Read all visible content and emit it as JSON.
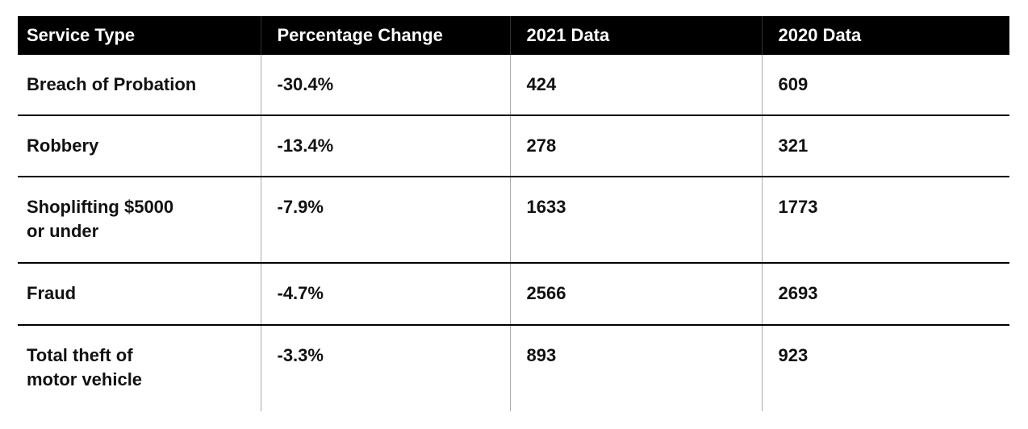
{
  "header": {
    "columns": [
      "Service Type",
      "Percentage Change",
      "2021 Data",
      "2020 Data"
    ]
  },
  "table": {
    "rows": [
      [
        "Breach of Probation",
        "-30.4%",
        "424",
        "609"
      ],
      [
        "Robbery",
        "-13.4%",
        "278",
        "321"
      ],
      [
        "Shoplifting $5000\nor under",
        "-7.9%",
        "1633",
        "1773"
      ],
      [
        "Fraud",
        "-4.7%",
        "2566",
        "2693"
      ],
      [
        "Total theft of\nmotor vehicle",
        "-3.3%",
        "893",
        "923"
      ]
    ]
  }
}
